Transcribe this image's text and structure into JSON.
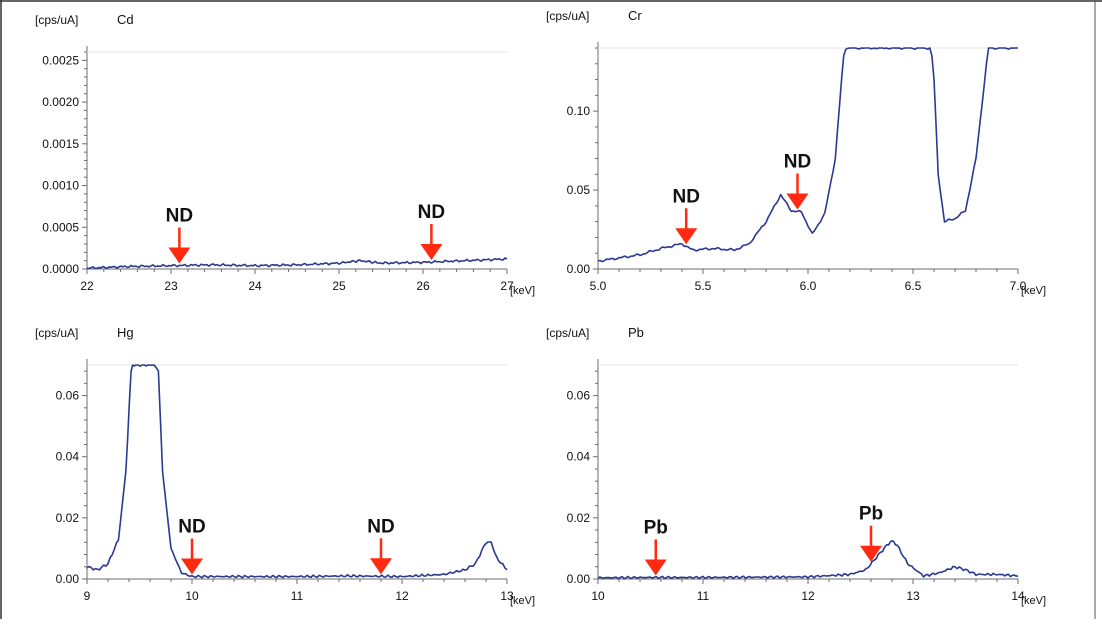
{
  "chart_data": [
    {
      "type": "line",
      "element": "Cd",
      "unit_label": "[cps/uA]",
      "xlabel": "[keV]",
      "xlim": [
        22,
        27
      ],
      "ylim": [
        0,
        0.0026
      ],
      "xticks": [
        "22",
        "23",
        "24",
        "25",
        "26",
        "27"
      ],
      "yticks": [
        "0.0000",
        "0.0005",
        "0.0010",
        "0.0015",
        "0.0020",
        "0.0025"
      ],
      "series": [
        {
          "x": [
            22.0,
            22.5,
            23.0,
            23.5,
            24.0,
            24.5,
            25.0,
            25.25,
            25.5,
            26.0,
            26.5,
            27.0
          ],
          "y": [
            1e-05,
            3e-05,
            4e-05,
            5e-05,
            4e-05,
            5e-05,
            7e-05,
            0.0001,
            7e-05,
            8e-05,
            0.0001,
            0.00012
          ]
        }
      ],
      "annotations": [
        {
          "text": "ND",
          "x": 23.1
        },
        {
          "text": "ND",
          "x": 26.1
        }
      ]
    },
    {
      "type": "line",
      "element": "Cr",
      "unit_label": "[cps/uA]",
      "xlabel": "[keV]",
      "xlim": [
        5.0,
        7.0
      ],
      "ylim": [
        0,
        0.14
      ],
      "xticks": [
        "5.0",
        "5.5",
        "6.0",
        "6.5",
        "7.0"
      ],
      "yticks": [
        "0.00",
        "0.05",
        "0.10"
      ],
      "series": [
        {
          "x": [
            5.0,
            5.1,
            5.2,
            5.3,
            5.4,
            5.45,
            5.55,
            5.65,
            5.72,
            5.8,
            5.87,
            5.92,
            5.97,
            6.02,
            6.08,
            6.13,
            6.16,
            6.18,
            6.2,
            6.3,
            6.4,
            6.5,
            6.58,
            6.6,
            6.62,
            6.65,
            6.7,
            6.75,
            6.8,
            6.85,
            6.87,
            6.9,
            7.0
          ],
          "y": [
            0.005,
            0.007,
            0.009,
            0.013,
            0.016,
            0.012,
            0.013,
            0.012,
            0.016,
            0.03,
            0.047,
            0.037,
            0.036,
            0.022,
            0.035,
            0.07,
            0.12,
            0.15,
            0.15,
            0.15,
            0.15,
            0.15,
            0.15,
            0.12,
            0.06,
            0.03,
            0.032,
            0.037,
            0.07,
            0.13,
            0.15,
            0.15,
            0.15
          ]
        }
      ],
      "annotations": [
        {
          "text": "ND",
          "x": 5.42
        },
        {
          "text": "ND",
          "x": 5.95
        }
      ]
    },
    {
      "type": "line",
      "element": "Hg",
      "unit_label": "[cps/uA]",
      "xlabel": "[keV]",
      "xlim": [
        9,
        13
      ],
      "ylim": [
        0,
        0.07
      ],
      "xticks": [
        "9",
        "10",
        "11",
        "12",
        "13"
      ],
      "yticks": [
        "0.00",
        "0.02",
        "0.04",
        "0.06"
      ],
      "series": [
        {
          "x": [
            9.0,
            9.1,
            9.2,
            9.3,
            9.37,
            9.42,
            9.45,
            9.6,
            9.68,
            9.72,
            9.8,
            9.9,
            10.0,
            10.5,
            11.0,
            11.5,
            12.0,
            12.4,
            12.6,
            12.7,
            12.8,
            12.85,
            12.9,
            13.0
          ],
          "y": [
            0.004,
            0.003,
            0.005,
            0.013,
            0.035,
            0.068,
            0.072,
            0.072,
            0.068,
            0.035,
            0.01,
            0.002,
            0.0008,
            0.0008,
            0.0008,
            0.001,
            0.0008,
            0.0015,
            0.003,
            0.005,
            0.012,
            0.012,
            0.007,
            0.003
          ]
        }
      ],
      "annotations": [
        {
          "text": "ND",
          "x": 10.0
        },
        {
          "text": "ND",
          "x": 11.8
        }
      ]
    },
    {
      "type": "line",
      "element": "Pb",
      "unit_label": "[cps/uA]",
      "xlabel": "[keV]",
      "xlim": [
        10,
        14
      ],
      "ylim": [
        0,
        0.07
      ],
      "xticks": [
        "10",
        "11",
        "12",
        "13",
        "14"
      ],
      "yticks": [
        "0.00",
        "0.02",
        "0.04",
        "0.06"
      ],
      "series": [
        {
          "x": [
            10.0,
            10.5,
            11.0,
            11.5,
            12.0,
            12.4,
            12.55,
            12.65,
            12.75,
            12.8,
            12.85,
            12.95,
            13.1,
            13.25,
            13.4,
            13.5,
            13.6,
            13.8,
            14.0
          ],
          "y": [
            0.0004,
            0.0005,
            0.0005,
            0.0006,
            0.0007,
            0.0015,
            0.003,
            0.007,
            0.011,
            0.0125,
            0.011,
            0.005,
            0.001,
            0.002,
            0.004,
            0.003,
            0.0015,
            0.0015,
            0.001
          ]
        }
      ],
      "annotations": [
        {
          "text": "Pb",
          "x": 10.55
        },
        {
          "text": "Pb",
          "x": 12.6
        }
      ]
    }
  ],
  "colors": {
    "line": "#2b3990",
    "arrow": "#ff2a0f",
    "axis": "#6c6c6c",
    "text": "#111111"
  }
}
